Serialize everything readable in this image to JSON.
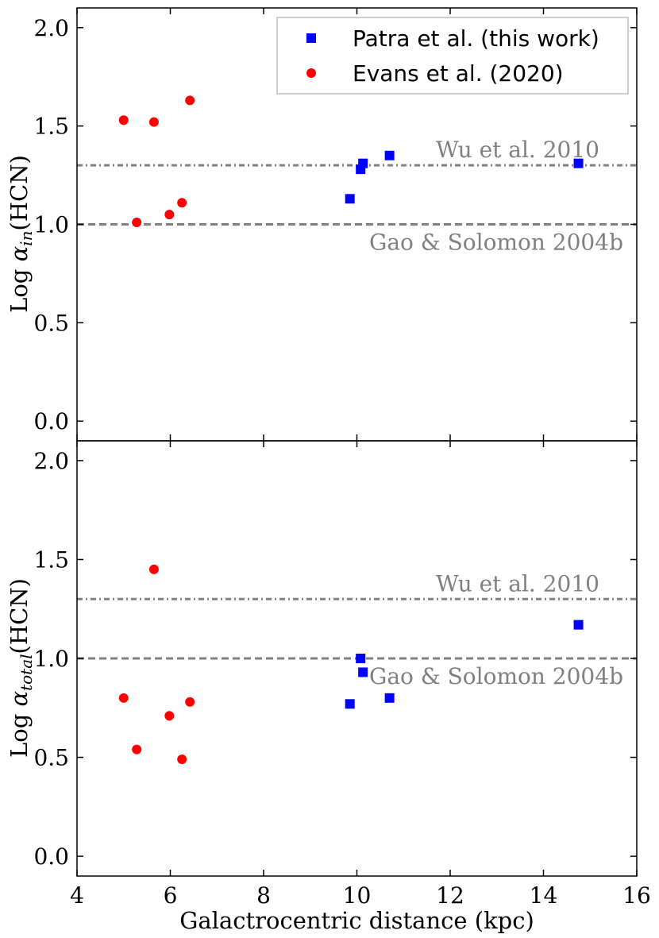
{
  "chart_data": [
    {
      "type": "scatter",
      "panel": "top",
      "ylabel_prefix": "Log ",
      "ylabel_symbol": "α",
      "ylabel_subscript": "in",
      "ylabel_suffix": "(HCN)",
      "xlabel": "",
      "xlim": [
        4,
        16
      ],
      "ylim": [
        -0.1,
        2.1
      ],
      "yticks": [
        "0.0",
        "0.5",
        "1.0",
        "1.5",
        "2.0"
      ],
      "ytick_values": [
        0.0,
        0.5,
        1.0,
        1.5,
        2.0
      ],
      "series": [
        {
          "name": "Patra et al. (this work)",
          "marker": "square",
          "color": "#0000ff",
          "x": [
            9.85,
            10.08,
            10.13,
            10.7,
            14.75
          ],
          "y": [
            1.13,
            1.28,
            1.31,
            1.35,
            1.31
          ]
        },
        {
          "name": "Evans et al. (2020)",
          "marker": "circle",
          "color": "#ff0000",
          "x": [
            5.0,
            5.28,
            5.65,
            5.98,
            6.25,
            6.42
          ],
          "y": [
            1.53,
            1.01,
            1.52,
            1.05,
            1.11,
            1.63
          ]
        }
      ],
      "reference_lines": [
        {
          "name": "Wu et al. 2010",
          "y": 1.3,
          "style": "dashdot"
        },
        {
          "name": "Gao & Solomon 2004b",
          "y": 1.0,
          "style": "dashed"
        }
      ],
      "legend_position": "top-right"
    },
    {
      "type": "scatter",
      "panel": "bottom",
      "ylabel_prefix": "Log ",
      "ylabel_symbol": "α",
      "ylabel_subscript": "total",
      "ylabel_suffix": "(HCN)",
      "xlabel": "Galactrocentric distance (kpc)",
      "xlim": [
        4,
        16
      ],
      "ylim": [
        -0.1,
        2.1
      ],
      "xticks": [
        "4",
        "6",
        "8",
        "10",
        "12",
        "14",
        "16"
      ],
      "xtick_values": [
        4,
        6,
        8,
        10,
        12,
        14,
        16
      ],
      "yticks": [
        "0.0",
        "0.5",
        "1.0",
        "1.5",
        "2.0"
      ],
      "ytick_values": [
        0.0,
        0.5,
        1.0,
        1.5,
        2.0
      ],
      "series": [
        {
          "name": "Patra et al. (this work)",
          "marker": "square",
          "color": "#0000ff",
          "x": [
            9.85,
            10.08,
            10.13,
            10.7,
            14.75
          ],
          "y": [
            0.77,
            1.0,
            0.93,
            0.8,
            1.17
          ]
        },
        {
          "name": "Evans et al. (2020)",
          "marker": "circle",
          "color": "#ff0000",
          "x": [
            5.0,
            5.28,
            5.65,
            5.98,
            6.25,
            6.42
          ],
          "y": [
            0.8,
            0.54,
            1.45,
            0.71,
            0.49,
            0.78
          ]
        }
      ],
      "reference_lines": [
        {
          "name": "Wu et al. 2010",
          "y": 1.3,
          "style": "dashdot"
        },
        {
          "name": "Gao & Solomon 2004b",
          "y": 1.0,
          "style": "dashed"
        }
      ]
    }
  ],
  "colors": {
    "patra": "#0000ff",
    "evans": "#ff0000",
    "reference": "#808080"
  }
}
